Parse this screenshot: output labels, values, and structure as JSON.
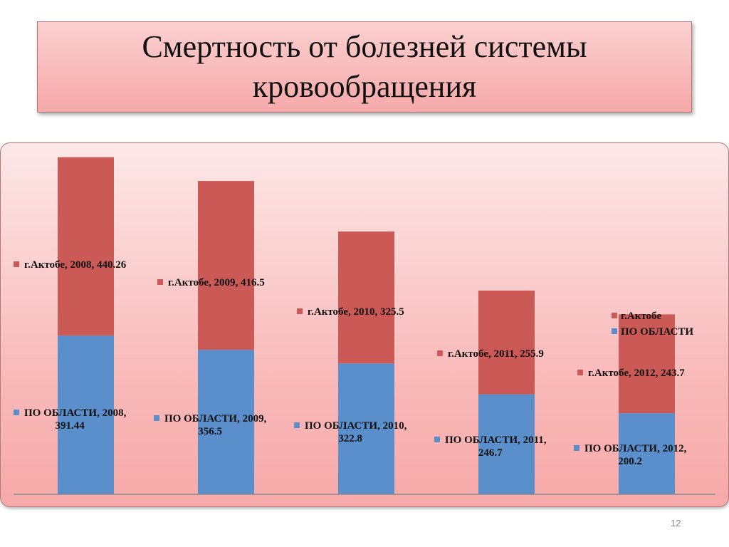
{
  "slide": {
    "title": "Смертность  от болезней системы\nкровообращения",
    "page_number": "12"
  },
  "colors": {
    "region": "#5b8fcc",
    "city": "#cb5a56",
    "axis": "#8b8b8b"
  },
  "chart_data": {
    "type": "bar",
    "stacked": true,
    "categories": [
      "2008",
      "2009",
      "2010",
      "2011",
      "2012"
    ],
    "series": [
      {
        "name": "ПО ОБЛАСТИ",
        "values": [
          391.44,
          356.5,
          322.8,
          246.7,
          200.2
        ],
        "labels": [
          {
            "text": "ПО ОБЛАСТИ, 2008,",
            "value": "391.44"
          },
          {
            "text": "ПО ОБЛАСТИ, 2009,",
            "value": "356.5"
          },
          {
            "text": "ПО ОБЛАСТИ, 2010,",
            "value": "322.8"
          },
          {
            "text": "ПО ОБЛАСТИ, 2011,",
            "value": "246.7"
          },
          {
            "text": "ПО ОБЛАСТИ, 2012,",
            "value": "200.2"
          }
        ]
      },
      {
        "name": "г.Актобе",
        "values": [
          440.26,
          416.5,
          325.5,
          255.9,
          243.7
        ],
        "labels": [
          "г.Актобе, 2008, 440.26",
          "г.Актобе, 2009, 416.5",
          "г.Актобе, 2010, 325.5",
          "г.Актобе, 2011, 255.9",
          "г.Актобе, 2012, 243.7"
        ]
      }
    ],
    "ylim": [
      0,
      840
    ],
    "legend": {
      "position": "right",
      "items": [
        "г.Актобе",
        "ПО ОБЛАСТИ"
      ]
    },
    "grid": false
  }
}
